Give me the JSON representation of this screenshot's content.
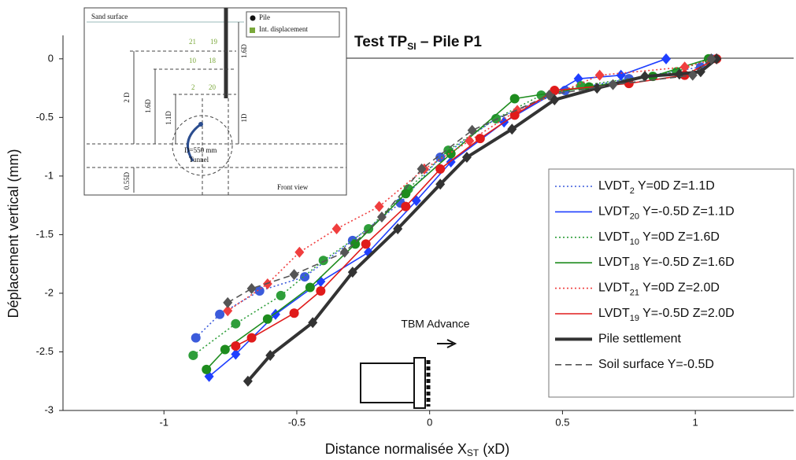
{
  "chart_data": {
    "type": "line",
    "title": [
      "Test TP",
      "SI",
      " – Pile P1"
    ],
    "x_label": [
      "Distance normalisée X",
      "ST",
      " (xD)"
    ],
    "y_label": "Déplacement vertical (mm)",
    "xlim": [
      -1.38,
      1.37
    ],
    "ylim": [
      -3,
      0.2
    ],
    "xticks": [
      -1,
      -0.5,
      0,
      0.5,
      1
    ],
    "yticks": [
      0,
      -0.5,
      -1,
      -1.5,
      -2,
      -2.5,
      -3
    ],
    "annotations": {
      "tbm": "TBM Advance"
    },
    "series": [
      {
        "name": [
          "LVDT",
          "2",
          " Y=0D Z=1.1D"
        ],
        "color": "#3b5bdb",
        "dash": "dotted",
        "marker": "circle",
        "x": [
          -0.88,
          -0.79,
          -0.64,
          -0.47,
          -0.29,
          -0.11,
          0.04,
          0.25,
          0.51,
          0.75,
          1.02,
          1.06
        ],
        "values": [
          -2.38,
          -2.18,
          -1.98,
          -1.86,
          -1.55,
          -1.23,
          -0.84,
          -0.51,
          -0.27,
          -0.17,
          -0.07,
          0
        ]
      },
      {
        "name": [
          "LVDT",
          "20",
          " Y=-0.5D Z=1.1D"
        ],
        "color": "#1f3fff",
        "dash": "solid",
        "marker": "diamond",
        "x": [
          -0.83,
          -0.73,
          -0.58,
          -0.41,
          -0.23,
          -0.05,
          0.08,
          0.28,
          0.56,
          0.72,
          0.89
        ],
        "values": [
          -2.71,
          -2.52,
          -2.18,
          -1.9,
          -1.65,
          -1.21,
          -0.88,
          -0.54,
          -0.17,
          -0.14,
          0
        ]
      },
      {
        "name": [
          "LVDT",
          "10",
          " Y=0D  Z=1.6D"
        ],
        "color": "#2e9e3a",
        "dash": "dotted",
        "marker": "circle",
        "x": [
          -0.89,
          -0.73,
          -0.56,
          -0.4,
          -0.23,
          -0.08,
          0.07,
          0.25,
          0.42,
          0.57,
          0.93,
          1.05
        ],
        "values": [
          -2.53,
          -2.26,
          -2.02,
          -1.72,
          -1.45,
          -1.11,
          -0.78,
          -0.51,
          -0.31,
          -0.23,
          -0.11,
          0
        ]
      },
      {
        "name": [
          "LVDT",
          "18",
          " Y=-0.5D  Z=1.6D"
        ],
        "color": "#1e8c1e",
        "dash": "solid",
        "marker": "circle",
        "x": [
          -0.84,
          -0.77,
          -0.61,
          -0.45,
          -0.28,
          -0.09,
          0.08,
          0.32,
          0.6,
          0.84,
          1.05
        ],
        "values": [
          -2.65,
          -2.48,
          -2.22,
          -1.95,
          -1.58,
          -1.15,
          -0.81,
          -0.34,
          -0.24,
          -0.15,
          0
        ]
      },
      {
        "name": [
          "LVDT",
          "21",
          " Y=0D Z=2.0D"
        ],
        "color": "#f03e3e",
        "dash": "dotted",
        "marker": "diamond",
        "x": [
          -0.76,
          -0.61,
          -0.49,
          -0.35,
          -0.19,
          -0.02,
          0.15,
          0.33,
          0.64,
          0.96,
          1.08
        ],
        "values": [
          -2.15,
          -1.92,
          -1.65,
          -1.45,
          -1.26,
          -0.94,
          -0.7,
          -0.44,
          -0.14,
          -0.07,
          0
        ]
      },
      {
        "name": [
          "LVDT",
          "19",
          "  Y=-0.5D  Z=2.0D"
        ],
        "color": "#e01b1b",
        "dash": "solid",
        "marker": "circle",
        "x": [
          -0.73,
          -0.67,
          -0.51,
          -0.41,
          -0.24,
          -0.09,
          0.04,
          0.19,
          0.32,
          0.47,
          0.75,
          0.96,
          1.08
        ],
        "values": [
          -2.45,
          -2.38,
          -2.17,
          -1.98,
          -1.58,
          -1.26,
          -0.94,
          -0.68,
          -0.48,
          -0.27,
          -0.21,
          -0.14,
          0
        ]
      },
      {
        "name": [
          "Pile settlement"
        ],
        "color": "#333333",
        "dash": "solid",
        "width": 4,
        "marker": "diamond",
        "x": [
          -0.684,
          -0.6,
          -0.44,
          -0.29,
          -0.12,
          0.04,
          0.14,
          0.31,
          0.47,
          0.63,
          0.81,
          0.94,
          1.02,
          1.08
        ],
        "values": [
          -2.75,
          -2.53,
          -2.25,
          -1.82,
          -1.45,
          -1.07,
          -0.84,
          -0.6,
          -0.35,
          -0.25,
          -0.15,
          -0.13,
          -0.11,
          0
        ]
      },
      {
        "name": [
          "Soil surface Y=-0.5D"
        ],
        "color": "#555555",
        "dash": "dashed",
        "marker": "diamond",
        "x": [
          -0.76,
          -0.67,
          -0.51,
          -0.32,
          -0.18,
          -0.03,
          0.16,
          0.45,
          0.69,
          0.99,
          1.06
        ],
        "values": [
          -2.08,
          -1.96,
          -1.84,
          -1.65,
          -1.35,
          -0.94,
          -0.61,
          -0.31,
          -0.22,
          -0.14,
          0
        ]
      }
    ]
  },
  "inset": {
    "sand_surface": "Sand surface",
    "legend": [
      "Pile",
      "Int. displacement"
    ],
    "sensors": [
      "21",
      "19",
      "10",
      "18",
      "2",
      "20"
    ],
    "dimensions": [
      "2 D",
      "1.6D",
      "1.1D",
      "1.6D",
      "1D",
      "0.55D"
    ],
    "diameter": "D=550 mm",
    "tunnel": "Tunnel",
    "view": "Front view"
  }
}
